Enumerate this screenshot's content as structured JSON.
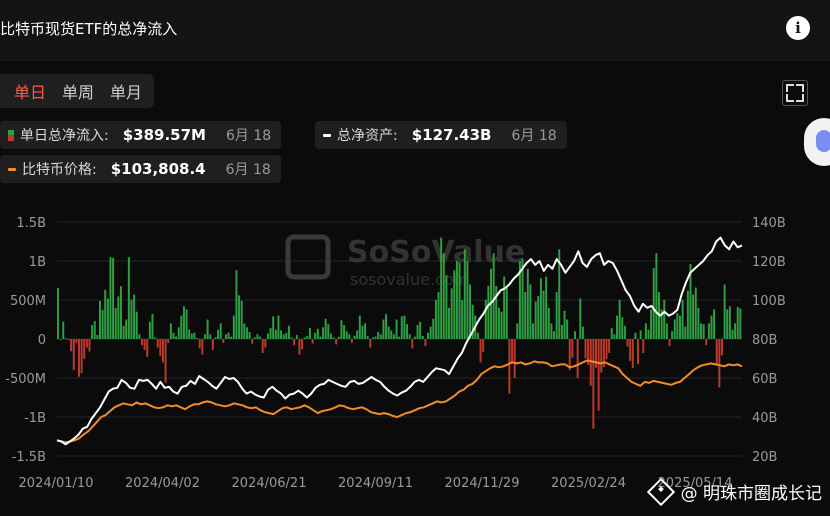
{
  "header": {
    "title": "比特币现货ETF的总净流入",
    "info_icon": "info-circle-icon"
  },
  "tabs": [
    {
      "label": "单日",
      "active": true
    },
    {
      "label": "单周",
      "active": false
    },
    {
      "label": "单月",
      "active": false
    }
  ],
  "fullscreen_icon": "fullscreen-icon",
  "legend": {
    "daily_flow": {
      "label": "单日总净流入:",
      "value": "$389.57M",
      "date": "6月 18"
    },
    "net_assets": {
      "label": "总净资产:",
      "value": "$127.43B",
      "date": "6月 18"
    },
    "btc_price": {
      "label": "比特币价格:",
      "value": "$103,808.4",
      "date": "6月 18"
    }
  },
  "watermark": {
    "brand": "SoSoValue",
    "url": "sosovalue.com"
  },
  "footer_watermark": {
    "text": "@ 明珠市圈成长记"
  },
  "colors": {
    "inflow": "#2ea043",
    "outflow": "#c0392b",
    "net_assets_line": "#ffffff",
    "price_line": "#f28c28",
    "active_tab": "#ff5a4a"
  },
  "chart_data": {
    "type": "bar",
    "x_tick_labels": [
      "2024/01/10",
      "2024/04/02",
      "2024/06/21",
      "2024/09/11",
      "2024/11/29",
      "2025/02/24",
      "2025/05/14"
    ],
    "left_axis": {
      "ticks": [
        "1.5B",
        "1B",
        "500M",
        "0",
        "-500M",
        "-1B",
        "-1.5B"
      ],
      "ylim": [
        -1500,
        1500
      ],
      "unit": "M USD"
    },
    "right_axis": {
      "ticks": [
        "140B",
        "120B",
        "100B",
        "80B",
        "60B",
        "40B",
        "20B"
      ],
      "ylim": [
        20,
        140
      ],
      "unit": "B"
    },
    "series": [
      {
        "name": "单日总净流入",
        "type": "bar",
        "axis": "left",
        "values": [
          655,
          -15,
          224,
          10,
          -2,
          -158,
          -397,
          -55,
          -483,
          -438,
          -255,
          -110,
          -160,
          180,
          230,
          52,
          487,
          374,
          631,
          520,
          1050,
          1040,
          400,
          545,
          676,
          170,
          250,
          1050,
          505,
          570,
          350,
          60,
          -80,
          -140,
          -230,
          220,
          320,
          20,
          -110,
          -220,
          -300,
          -560,
          -50,
          200,
          80,
          32,
          150,
          300,
          420,
          380,
          120,
          70,
          80,
          12,
          -120,
          -200,
          60,
          250,
          60,
          -140,
          20,
          120,
          200,
          -50,
          60,
          80,
          30,
          300,
          880,
          560,
          490,
          200,
          150,
          90,
          -60,
          20,
          60,
          30,
          -180,
          -110,
          70,
          140,
          290,
          120,
          300,
          110,
          60,
          80,
          170,
          20,
          -80,
          50,
          -200,
          -130,
          20,
          40,
          140,
          -60,
          80,
          130,
          30,
          150,
          260,
          190,
          70,
          20,
          -70,
          30,
          240,
          180,
          100,
          60,
          -50,
          40,
          110,
          300,
          170,
          200,
          40,
          -110,
          20,
          30,
          90,
          60,
          250,
          320,
          160,
          110,
          60,
          250,
          30,
          290,
          300,
          190,
          60,
          -120,
          30,
          180,
          220,
          40,
          -90,
          80,
          160,
          260,
          500,
          600,
          1300,
          1100,
          820,
          400,
          650,
          880,
          1000,
          980,
          500,
          1150,
          1000,
          700,
          440,
          300,
          80,
          -300,
          -170,
          500,
          680,
          900,
          1100,
          680,
          400,
          350,
          800,
          650,
          -700,
          -300,
          -500,
          200,
          1000,
          1030,
          600,
          900,
          700,
          200,
          480,
          550,
          780,
          620,
          800,
          400,
          200,
          100,
          600,
          1150,
          180,
          360,
          250,
          -400,
          -240,
          100,
          -500,
          520,
          160,
          -250,
          -330,
          -600,
          -1150,
          -370,
          -920,
          -430,
          -360,
          -260,
          -180,
          140,
          60,
          300,
          500,
          280,
          170,
          -100,
          -280,
          -370,
          80,
          -320,
          110,
          -180,
          200,
          120,
          380,
          910,
          1100,
          600,
          380,
          500,
          200,
          -90,
          100,
          250,
          330,
          300,
          500,
          160,
          620,
          960,
          570,
          660,
          400,
          200,
          190,
          -80,
          200,
          300,
          380,
          -320,
          -620,
          -210,
          700,
          380,
          420,
          120,
          200,
          410,
          390
        ]
      },
      {
        "name": "总净资产",
        "type": "line",
        "axis": "right",
        "values": [
          28,
          27.5,
          26,
          27.5,
          29,
          31,
          34,
          35,
          39,
          42,
          45,
          49,
          53,
          54.5,
          55,
          59,
          57.5,
          55,
          54.5,
          59,
          58.5,
          59,
          57,
          54.5,
          58,
          55,
          55.5,
          53,
          52,
          55.5,
          56,
          58.5,
          57,
          61,
          59.5,
          58,
          56,
          54.5,
          57.5,
          60.5,
          59.5,
          60,
          58,
          54.5,
          52,
          53,
          51.5,
          50.5,
          50,
          54,
          55.5,
          53.5,
          52,
          49.5,
          51.5,
          52,
          53.5,
          52,
          50,
          52,
          55,
          56.5,
          57,
          59,
          58,
          57,
          56,
          55.5,
          58,
          58.5,
          57,
          57.5,
          59,
          60.5,
          59,
          58,
          55.5,
          53.5,
          52,
          51,
          52.5,
          53.5,
          55.5,
          58,
          59,
          58,
          60.5,
          63,
          65,
          64.5,
          64,
          62,
          66,
          70,
          73,
          78,
          82,
          86,
          90,
          93,
          97,
          99,
          102,
          105,
          106,
          108,
          111,
          113,
          116,
          119,
          121,
          118,
          120,
          115,
          118,
          116,
          121,
          118,
          114,
          117,
          120,
          125,
          119,
          117,
          121,
          123,
          124,
          118,
          120,
          119,
          115,
          110,
          105,
          102,
          97,
          94,
          98,
          96,
          97,
          94,
          92,
          94,
          92,
          93,
          95,
          103,
          109,
          114,
          116,
          118,
          120,
          123,
          125,
          130,
          132,
          128,
          126,
          130,
          127,
          128
        ]
      },
      {
        "name": "比特币价格",
        "type": "line",
        "axis": "right",
        "values": [
          28,
          27.5,
          27,
          27.5,
          28,
          29,
          31,
          32.5,
          35,
          37.5,
          40,
          41,
          43,
          45,
          46,
          47,
          46.5,
          46,
          47.5,
          46.5,
          47,
          46,
          45,
          44.5,
          45,
          46,
          45.5,
          46,
          45,
          44,
          45.5,
          46.5,
          46.5,
          47.5,
          48,
          47.5,
          46.5,
          46,
          45.5,
          46,
          47,
          46.5,
          46,
          45,
          44.5,
          45,
          43.5,
          42.5,
          42,
          41.5,
          43,
          44.5,
          45,
          44,
          44.5,
          45,
          46,
          45,
          43.5,
          42,
          43,
          43.5,
          44,
          45,
          46,
          45.5,
          44.5,
          44,
          44.5,
          45,
          44,
          42.5,
          42,
          41.5,
          42,
          41.5,
          40.5,
          40,
          41,
          42,
          42.5,
          43.5,
          44.5,
          45,
          46,
          47,
          48,
          47.5,
          48,
          49.5,
          51,
          53,
          54,
          56,
          57,
          59,
          62,
          63.5,
          65,
          66,
          65.5,
          66,
          67,
          68,
          67.5,
          68,
          67,
          67.5,
          68.5,
          68,
          68,
          67.5,
          66,
          66.5,
          67,
          67,
          65.5,
          66,
          67,
          68,
          69,
          68.5,
          68,
          67.5,
          68,
          67,
          66,
          65,
          62,
          60,
          58,
          57,
          56,
          58,
          57.5,
          58.5,
          58,
          57.5,
          57,
          56.5,
          57.5,
          58,
          60,
          62,
          64,
          65.5,
          66.5,
          67,
          67.5,
          67,
          66.5,
          66,
          67,
          66.5,
          67,
          66
        ]
      }
    ],
    "grid": true,
    "legend_placement": "top"
  }
}
